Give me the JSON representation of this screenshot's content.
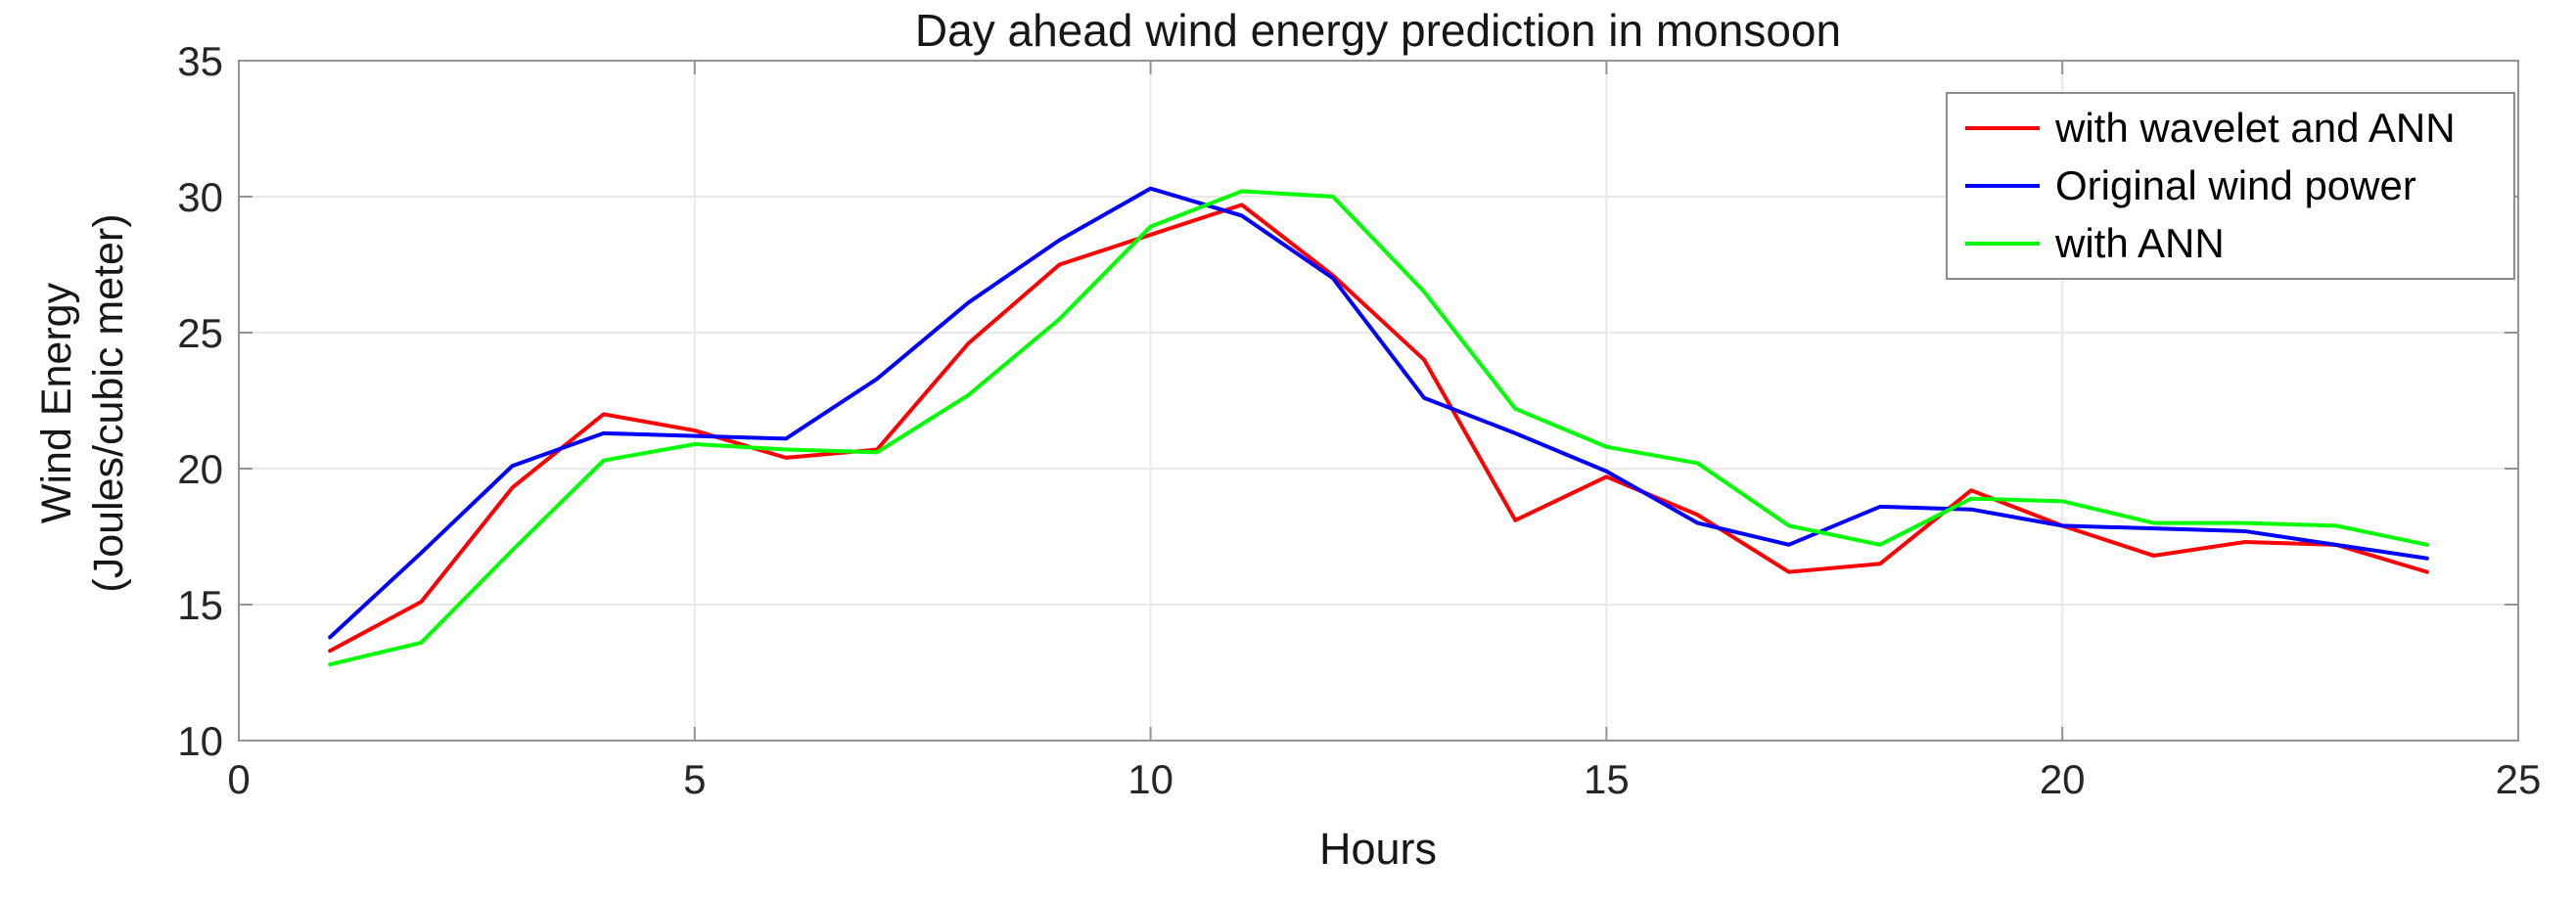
{
  "figure": {
    "title": "Day ahead wind energy prediction in monsoon",
    "xlabel": "Hours",
    "ylabel_line1": "Wind Energy",
    "ylabel_line2": "(Joules/cubic meter)"
  },
  "legend": {
    "entries": [
      {
        "label": "with wavelet and ANN",
        "color": "#ff0000"
      },
      {
        "label": "Original wind power",
        "color": "#0000ff"
      },
      {
        "label": "with ANN",
        "color": "#00ff00"
      }
    ]
  },
  "chart_data": {
    "type": "line",
    "title": "Day ahead wind energy prediction in monsoon",
    "xlabel": "Hours",
    "ylabel": "Wind Energy (Joules/cubic meter)",
    "xlim": [
      0,
      25
    ],
    "ylim": [
      10,
      35
    ],
    "xticks": [
      0,
      5,
      10,
      15,
      20,
      25
    ],
    "yticks": [
      10,
      15,
      20,
      25,
      30,
      35
    ],
    "grid": true,
    "legend_position": "top-right",
    "x": [
      1,
      2,
      3,
      4,
      5,
      6,
      7,
      8,
      9,
      10,
      11,
      12,
      13,
      14,
      15,
      16,
      17,
      18,
      19,
      20,
      21,
      22,
      23,
      24
    ],
    "series": [
      {
        "name": "with wavelet and ANN",
        "color": "#ff0000",
        "values": [
          13.3,
          15.1,
          19.3,
          22.0,
          21.4,
          20.4,
          20.7,
          24.6,
          27.5,
          28.6,
          29.7,
          27.1,
          24.0,
          18.1,
          19.7,
          18.3,
          16.2,
          16.5,
          19.2,
          17.9,
          16.8,
          17.3,
          17.2,
          16.2
        ]
      },
      {
        "name": "Original wind power",
        "color": "#0000ff",
        "values": [
          13.8,
          16.9,
          20.1,
          21.3,
          21.2,
          21.1,
          23.3,
          26.1,
          28.4,
          30.3,
          29.3,
          27.0,
          22.6,
          21.3,
          19.9,
          18.0,
          17.2,
          18.6,
          18.5,
          17.9,
          17.8,
          17.7,
          17.2,
          16.7
        ]
      },
      {
        "name": "with ANN",
        "color": "#00ff00",
        "values": [
          12.8,
          13.6,
          17.0,
          20.3,
          20.9,
          20.7,
          20.6,
          22.7,
          25.5,
          28.9,
          30.2,
          30.0,
          26.5,
          22.2,
          20.8,
          20.2,
          17.9,
          17.2,
          18.9,
          18.8,
          18.0,
          18.0,
          17.9,
          17.2
        ]
      }
    ],
    "styles": {
      "grid_color": "#e8e8e8",
      "axis_color": "#949494",
      "tick_label_color": "#262626",
      "line_width": 4
    }
  }
}
